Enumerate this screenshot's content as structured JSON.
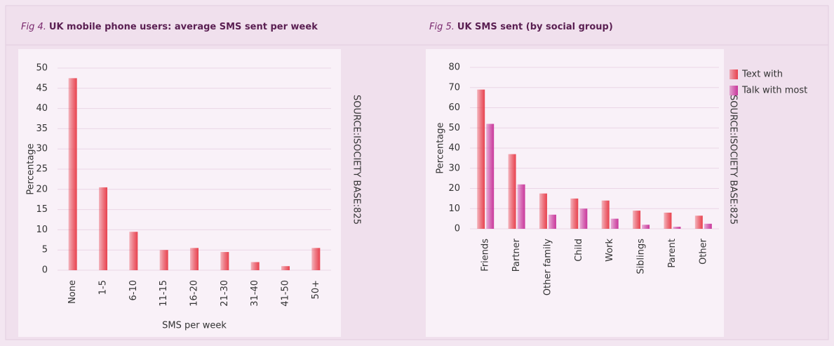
{
  "chart_data": [
    {
      "type": "bar",
      "figure": "Fig 4.",
      "title": "UK mobile phone users: average SMS sent per week",
      "categories": [
        "None",
        "1-5",
        "6-10",
        "11-15",
        "16-20",
        "21-30",
        "31-40",
        "41-50",
        "50+"
      ],
      "values": [
        47.5,
        20.5,
        9.5,
        5,
        5.5,
        4.5,
        2,
        1,
        5.5
      ],
      "color": "#e8424e",
      "ylim": [
        0,
        50
      ],
      "yticks": [
        0,
        5,
        10,
        15,
        20,
        25,
        30,
        35,
        40,
        45,
        50
      ],
      "ylabel": "Percentage",
      "xlabel": "SMS per week",
      "source": "SOURCE:ISOCIETY BASE:825",
      "grid": true
    },
    {
      "type": "bar",
      "figure": "Fig 5.",
      "title": "UK SMS sent (by social group)",
      "categories": [
        "Friends",
        "Partner",
        "Other family",
        "Child",
        "Work",
        "Siblings",
        "Parent",
        "Other"
      ],
      "series": [
        {
          "name": "Text with",
          "color": "#e8424e",
          "values": [
            69,
            37,
            17.5,
            15,
            14,
            9,
            8,
            6.5
          ]
        },
        {
          "name": "Talk with most",
          "color": "#c9379b",
          "values": [
            52,
            22,
            7,
            10,
            5,
            2,
            1,
            2.5
          ]
        }
      ],
      "ylim": [
        0,
        80
      ],
      "yticks": [
        0,
        10,
        20,
        30,
        40,
        50,
        60,
        70,
        80
      ],
      "ylabel": "Percentage",
      "source": "SOURCE:ISOCIETY BASE:825",
      "grid": true,
      "legend": "right"
    }
  ]
}
